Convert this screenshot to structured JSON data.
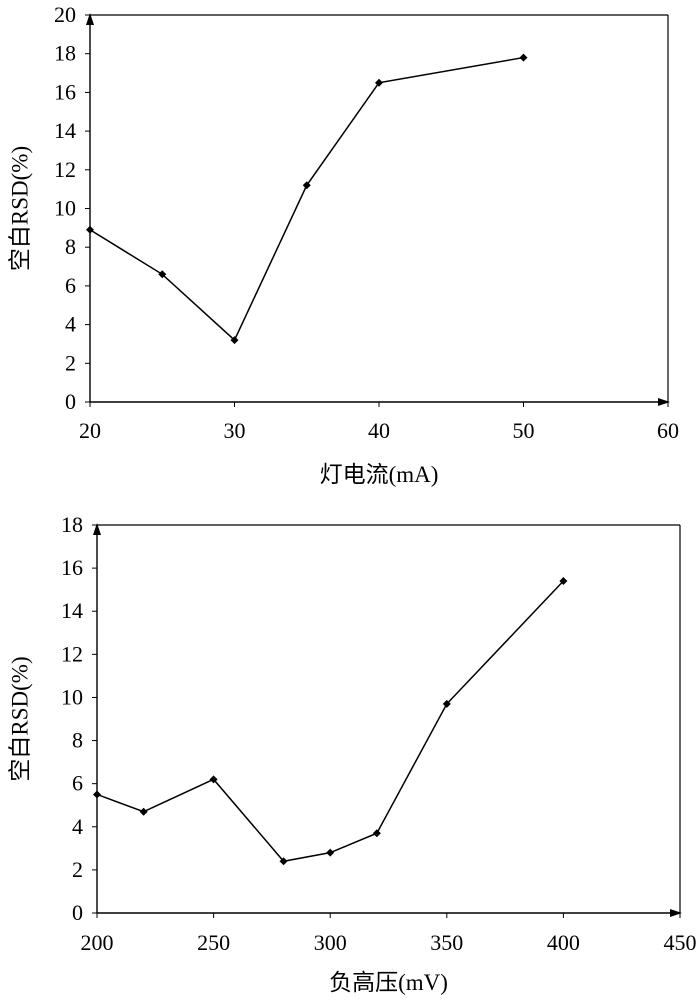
{
  "chart_data": [
    {
      "type": "line",
      "xlabel": "灯电流(mA)",
      "ylabel": "空白RSD(%)",
      "xlim": [
        20,
        60
      ],
      "ylim": [
        0,
        20
      ],
      "xticks": [
        20,
        30,
        40,
        50,
        60
      ],
      "yticks": [
        0,
        2,
        4,
        6,
        8,
        10,
        12,
        14,
        16,
        18,
        20
      ],
      "series": [
        {
          "x": [
            20,
            25,
            30,
            35,
            40,
            50
          ],
          "y": [
            8.9,
            6.6,
            3.2,
            11.2,
            16.5,
            17.8
          ]
        }
      ]
    },
    {
      "type": "line",
      "xlabel": "负高压(mV)",
      "ylabel": "空白RSD(%)",
      "xlim": [
        200,
        450
      ],
      "ylim": [
        0,
        18
      ],
      "xticks": [
        200,
        250,
        300,
        350,
        400,
        450
      ],
      "yticks": [
        0,
        2,
        4,
        6,
        8,
        10,
        12,
        14,
        16,
        18
      ],
      "series": [
        {
          "x": [
            200,
            220,
            250,
            280,
            300,
            320,
            350,
            400
          ],
          "y": [
            5.5,
            4.7,
            6.2,
            2.4,
            2.8,
            3.7,
            9.7,
            15.4
          ]
        }
      ]
    }
  ]
}
